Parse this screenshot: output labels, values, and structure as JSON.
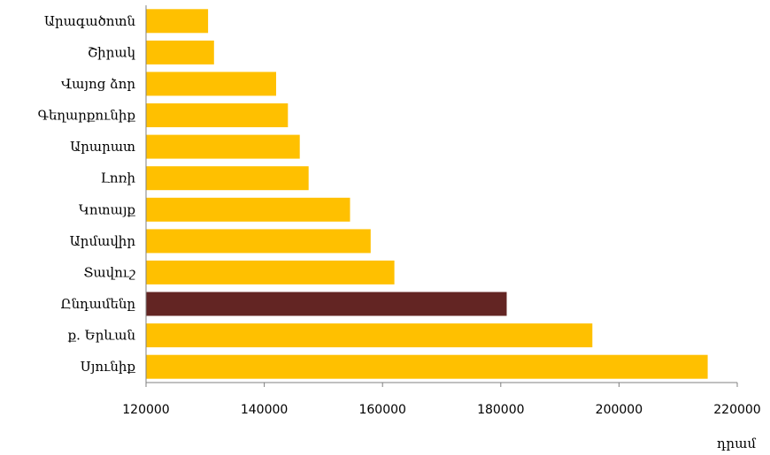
{
  "chart_data": {
    "type": "bar",
    "orientation": "horizontal",
    "categories": [
      "Արագածոտն",
      "Շիրակ",
      "Վայոց ձոր",
      "Գեղարքունիք",
      "Արարատ",
      "Լոռի",
      "Կոտայք",
      "Արմավիր",
      "Տավուշ",
      "Ընդամենը",
      "ք. Երևան",
      "Սյունիք"
    ],
    "values": [
      130500,
      131500,
      142000,
      144000,
      146000,
      147500,
      154500,
      158000,
      162000,
      181000,
      195500,
      215000
    ],
    "highlight_index": 9,
    "colors": {
      "bar": "#FFC000",
      "highlight": "#632523"
    },
    "xlim": [
      120000,
      220000
    ],
    "xticks": [
      "120000",
      "140000",
      "160000",
      "180000",
      "200000",
      "220000"
    ],
    "xtick_values": [
      120000,
      140000,
      160000,
      180000,
      200000,
      220000
    ],
    "xlabel": "դրամ",
    "grid": false,
    "legend": "none"
  }
}
